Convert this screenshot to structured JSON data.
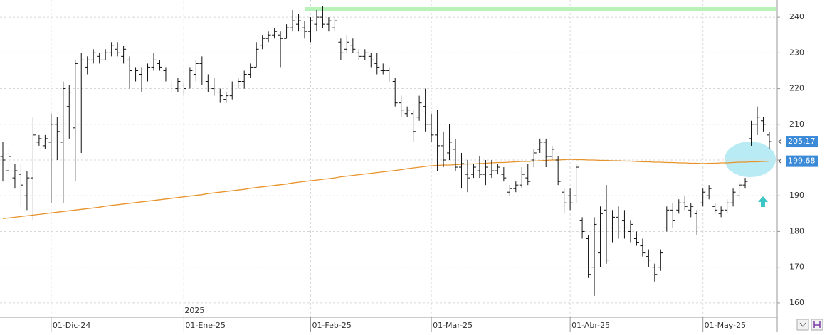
{
  "chart_data": {
    "type": "ohlc",
    "categories": [
      null,
      null,
      null,
      null,
      null,
      null,
      null,
      null,
      "01-Dic-24",
      null,
      null,
      null,
      null,
      null,
      null,
      null,
      null,
      null,
      null,
      null,
      null,
      null,
      null,
      null,
      null,
      null,
      null,
      null,
      null,
      null,
      "01-Ene-25",
      null,
      null,
      null,
      null,
      null,
      null,
      null,
      null,
      null,
      null,
      null,
      null,
      null,
      null,
      null,
      null,
      null,
      null,
      null,
      null,
      "01-Feb-25",
      null,
      null,
      null,
      null,
      null,
      null,
      null,
      null,
      null,
      null,
      null,
      null,
      null,
      null,
      null,
      null,
      null,
      null,
      null,
      "01-Mar-25",
      null,
      null,
      null,
      null,
      null,
      null,
      null,
      null,
      null,
      null,
      null,
      null,
      null,
      null,
      null,
      null,
      null,
      null,
      null,
      null,
      null,
      null,
      "01-Abr-25",
      null,
      null,
      null,
      null,
      null,
      null,
      null,
      null,
      null,
      null,
      null,
      null,
      null,
      null,
      null,
      null,
      null,
      null,
      null,
      null,
      null,
      "01-May-25",
      null,
      null,
      null,
      null,
      null,
      null,
      null,
      null,
      null,
      null,
      null
    ],
    "year_label": "2025",
    "ohlc": {
      "color": "#111111",
      "open": [
        201,
        197,
        195,
        196,
        190,
        195,
        205,
        204,
        205,
        210,
        205,
        215,
        209,
        223,
        226,
        228,
        229,
        228,
        230,
        231,
        229,
        228,
        223,
        224,
        223,
        226,
        227,
        225,
        221,
        220,
        221,
        221,
        224,
        227,
        222,
        220,
        219,
        217,
        218,
        221,
        222,
        224,
        226,
        232,
        234,
        235,
        235,
        234,
        237,
        238,
        237,
        236,
        238,
        240,
        238,
        237,
        233,
        231,
        232,
        230,
        229,
        229,
        227,
        225,
        225,
        222,
        216,
        213,
        213,
        212,
        215,
        210,
        207,
        204,
        202,
        203,
        198,
        196,
        196,
        197,
        196,
        196,
        197,
        196,
        191,
        192,
        193,
        195,
        200,
        203,
        205,
        201,
        200,
        191,
        190,
        190,
        183,
        178,
        170,
        174,
        186,
        181,
        184,
        183,
        180,
        178,
        176,
        173,
        170,
        170,
        181,
        186,
        186,
        188,
        186,
        185,
        188,
        190,
        187,
        185,
        186,
        188,
        190,
        193,
        206,
        210,
        211,
        207
      ],
      "high": [
        205,
        203,
        199,
        199,
        197,
        212,
        207,
        207,
        213,
        212,
        222,
        221,
        228,
        230,
        229,
        231,
        230,
        231,
        233,
        233,
        232,
        229,
        226,
        226,
        227,
        230,
        228,
        226,
        222,
        223,
        222,
        226,
        228,
        229,
        224,
        223,
        220,
        219,
        222,
        223,
        225,
        227,
        233,
        235,
        236,
        237,
        236,
        238,
        242,
        241,
        239,
        240,
        242,
        243,
        240,
        240,
        234,
        235,
        234,
        231,
        231,
        230,
        230,
        227,
        226,
        223,
        218,
        215,
        214,
        218,
        220,
        213,
        214,
        208,
        210,
        206,
        202,
        200,
        199,
        201,
        200,
        200,
        199,
        198,
        193,
        194,
        198,
        199,
        203,
        206,
        206,
        204,
        201,
        192,
        192,
        199,
        184,
        179,
        184,
        187,
        193,
        186,
        187,
        186,
        183,
        180,
        178,
        175,
        171,
        175,
        187,
        188,
        189,
        190,
        188,
        186,
        192,
        193,
        188,
        187,
        189,
        192,
        194,
        195,
        211,
        215,
        212,
        208
      ],
      "low": [
        194,
        193,
        192,
        187,
        186,
        183,
        204,
        203,
        188,
        200,
        188,
        206,
        194,
        202,
        224,
        227,
        227,
        228,
        229,
        229,
        227,
        220,
        222,
        219,
        222,
        225,
        225,
        222,
        219,
        219,
        218,
        220,
        222,
        221,
        219,
        218,
        216,
        216,
        217,
        220,
        220,
        223,
        226,
        231,
        233,
        234,
        226,
        234,
        236,
        236,
        234,
        233,
        236,
        237,
        236,
        236,
        228,
        230,
        230,
        228,
        228,
        226,
        224,
        224,
        222,
        215,
        212,
        212,
        205,
        211,
        208,
        205,
        197,
        198,
        200,
        197,
        192,
        191,
        195,
        195,
        193,
        195,
        196,
        194,
        190,
        191,
        192,
        193,
        198,
        202,
        198,
        200,
        193,
        185,
        186,
        188,
        178,
        167,
        162,
        170,
        171,
        177,
        178,
        178,
        177,
        176,
        173,
        170,
        166,
        169,
        180,
        181,
        185,
        186,
        184,
        179,
        187,
        189,
        185,
        184,
        185,
        187,
        189,
        192,
        204,
        207,
        208,
        203
      ],
      "close": [
        200,
        201,
        197,
        193,
        195,
        207,
        206,
        206,
        210,
        208,
        220,
        219,
        227,
        228,
        228,
        230,
        228,
        230,
        232,
        230,
        231,
        225,
        225,
        223,
        226,
        228,
        226,
        223,
        221,
        222,
        220,
        225,
        227,
        223,
        221,
        221,
        218,
        218,
        221,
        222,
        224,
        226,
        231,
        234,
        235,
        236,
        234,
        237,
        239,
        239,
        236,
        239,
        240,
        238,
        239,
        239,
        230,
        233,
        231,
        229,
        230,
        228,
        226,
        225,
        223,
        216,
        214,
        214,
        208,
        216,
        210,
        207,
        204,
        200,
        205,
        198,
        199,
        195,
        198,
        196,
        198,
        197,
        198,
        195,
        192,
        193,
        196,
        194,
        202,
        205,
        201,
        203,
        194,
        188,
        188,
        198,
        180,
        168,
        182,
        185,
        172,
        184,
        181,
        181,
        182,
        177,
        174,
        172,
        168,
        174,
        186,
        183,
        188,
        187,
        187,
        181,
        191,
        192,
        186,
        186,
        188,
        191,
        193,
        194,
        210,
        212,
        210,
        205.17
      ]
    },
    "moving_average": {
      "color": "#e8932a",
      "values": [
        183.6,
        183.8,
        184.0,
        184.2,
        184.4,
        184.6,
        184.8,
        185.0,
        185.2,
        185.4,
        185.6,
        185.8,
        186.0,
        186.2,
        186.4,
        186.6,
        186.8,
        187.1,
        187.3,
        187.5,
        187.7,
        187.9,
        188.1,
        188.3,
        188.5,
        188.7,
        188.9,
        189.1,
        189.3,
        189.5,
        189.7,
        189.9,
        190.1,
        190.3,
        190.6,
        190.8,
        191.0,
        191.2,
        191.4,
        191.6,
        191.8,
        192.1,
        192.3,
        192.5,
        192.7,
        192.9,
        193.1,
        193.3,
        193.6,
        193.8,
        194.0,
        194.2,
        194.4,
        194.6,
        194.8,
        195.0,
        195.3,
        195.5,
        195.7,
        195.9,
        196.1,
        196.3,
        196.5,
        196.7,
        196.9,
        197.1,
        197.3,
        197.6,
        197.8,
        198.0,
        198.2,
        198.4,
        198.5,
        198.6,
        198.6,
        198.7,
        198.8,
        198.9,
        198.9,
        199.0,
        199.1,
        199.2,
        199.3,
        199.3,
        199.4,
        199.5,
        199.6,
        199.6,
        199.7,
        199.8,
        199.9,
        200.0,
        200.0,
        200.1,
        200.2,
        200.1,
        200.1,
        200.0,
        200.0,
        199.9,
        199.9,
        199.8,
        199.8,
        199.7,
        199.7,
        199.6,
        199.5,
        199.5,
        199.4,
        199.4,
        199.3,
        199.3,
        199.2,
        199.2,
        199.1,
        199.1,
        199.0,
        199.1,
        199.1,
        199.2,
        199.2,
        199.3,
        199.4,
        199.4,
        199.5,
        199.5,
        199.6,
        199.68
      ]
    },
    "resistance_line": {
      "value": 242.2,
      "start": 50,
      "color": "#b8f2b8"
    },
    "price_markers": [
      {
        "value": 205.17,
        "label": "205,17",
        "color": "#3b8ad8"
      },
      {
        "value": 199.68,
        "label": "199,68",
        "color": "#3b8ad8"
      }
    ],
    "ylim": [
      156,
      244.8
    ],
    "yticks": [
      160,
      170,
      180,
      190,
      200,
      210,
      220,
      230,
      240
    ],
    "grid": true
  }
}
